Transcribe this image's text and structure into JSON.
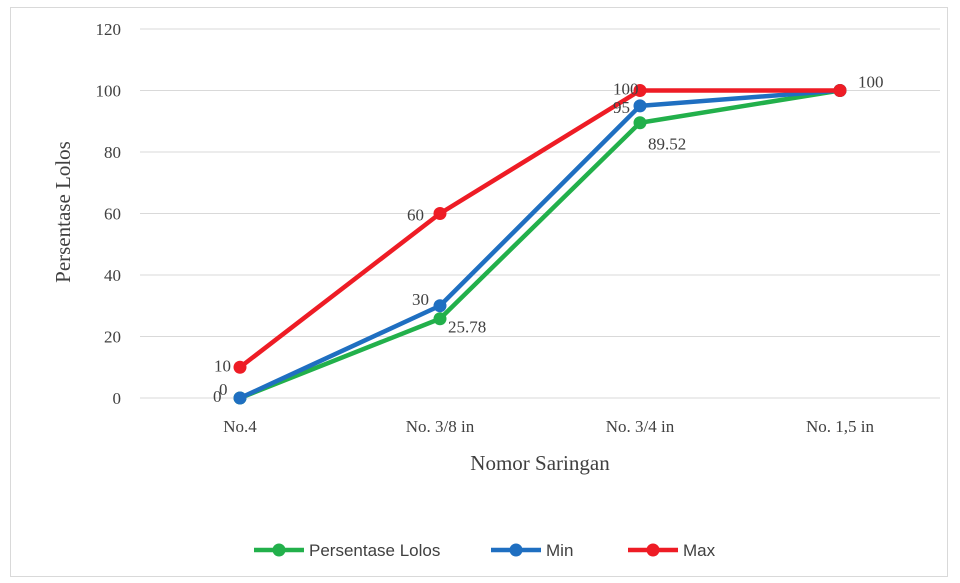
{
  "chart_data": {
    "type": "line",
    "categories": [
      "No.4",
      "No. 3/8 in",
      "No. 3/4 in",
      "No. 1,5 in"
    ],
    "ylim": [
      0,
      120
    ],
    "yticks": [
      "0",
      "20",
      "40",
      "60",
      "80",
      "100",
      "120"
    ],
    "xlabel": "Nomor Saringan",
    "ylabel": "Persentase Lolos",
    "grid": "horizontal",
    "legend": "bottom",
    "series": [
      {
        "name": "Persentase Lolos",
        "color": "#22b04b",
        "values": [
          0,
          25.78,
          89.52,
          100
        ],
        "labels": [
          "0",
          "25.78",
          "89.52",
          "100"
        ]
      },
      {
        "name": "Min",
        "color": "#1f6fc1",
        "values": [
          0,
          30,
          95,
          100
        ],
        "labels": [
          "0",
          "30",
          "95",
          ""
        ]
      },
      {
        "name": "Max",
        "color": "#ee1c25",
        "values": [
          10,
          60,
          100,
          100
        ],
        "labels": [
          "10",
          "60",
          "100",
          ""
        ]
      }
    ]
  }
}
